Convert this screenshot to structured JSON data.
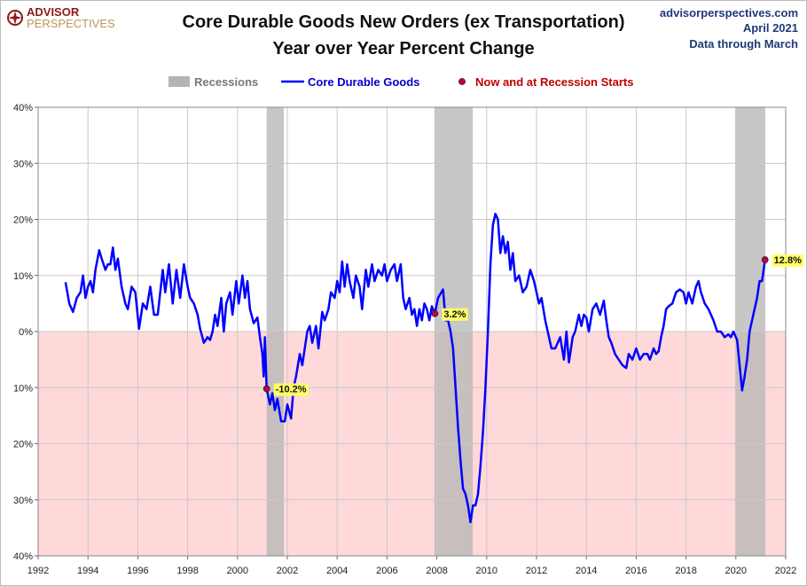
{
  "chart_data": {
    "type": "line",
    "title": "Core Durable Goods New Orders (ex Transportation)",
    "subtitle": "Year over Year Percent Change",
    "logo": [
      "ADVISOR",
      "PERSPECTIVES"
    ],
    "source": [
      "advisorperspectives.com",
      "April 2021",
      "Data through March"
    ],
    "x": [
      1993.1,
      1993.25,
      1993.4,
      1993.55,
      1993.7,
      1993.8,
      1993.9,
      1994.0,
      1994.1,
      1994.2,
      1994.3,
      1994.45,
      1994.55,
      1994.7,
      1994.8,
      1994.9,
      1995.0,
      1995.1,
      1995.2,
      1995.35,
      1995.5,
      1995.6,
      1995.75,
      1995.9,
      1996.05,
      1996.2,
      1996.35,
      1996.5,
      1996.65,
      1996.8,
      1997.0,
      1997.1,
      1997.25,
      1997.4,
      1997.55,
      1997.7,
      1997.85,
      1998.0,
      1998.1,
      1998.25,
      1998.4,
      1998.5,
      1998.65,
      1998.8,
      1998.9,
      1999.0,
      1999.1,
      1999.2,
      1999.35,
      1999.45,
      1999.55,
      1999.7,
      1999.8,
      1999.95,
      2000.05,
      2000.2,
      2000.3,
      2000.4,
      2000.5,
      2000.65,
      2000.8,
      2000.9,
      2001.0,
      2001.05,
      2001.1,
      2001.17,
      2001.3,
      2001.4,
      2001.5,
      2001.6,
      2001.75,
      2001.9,
      2002.0,
      2002.15,
      2002.25,
      2002.35,
      2002.5,
      2002.6,
      2002.7,
      2002.8,
      2002.9,
      2003.0,
      2003.15,
      2003.25,
      2003.4,
      2003.5,
      2003.65,
      2003.75,
      2003.9,
      2004.0,
      2004.1,
      2004.2,
      2004.3,
      2004.4,
      2004.5,
      2004.65,
      2004.75,
      2004.9,
      2005.0,
      2005.15,
      2005.25,
      2005.4,
      2005.5,
      2005.65,
      2005.8,
      2005.9,
      2006.0,
      2006.15,
      2006.3,
      2006.4,
      2006.55,
      2006.65,
      2006.75,
      2006.9,
      2007.0,
      2007.1,
      2007.2,
      2007.3,
      2007.4,
      2007.5,
      2007.6,
      2007.7,
      2007.8,
      2007.92,
      2008.05,
      2008.25,
      2008.35,
      2008.45,
      2008.55,
      2008.65,
      2008.75,
      2008.85,
      2008.95,
      2009.05,
      2009.15,
      2009.25,
      2009.35,
      2009.45,
      2009.55,
      2009.65,
      2009.75,
      2009.85,
      2009.95,
      2010.05,
      2010.15,
      2010.25,
      2010.35,
      2010.45,
      2010.55,
      2010.65,
      2010.75,
      2010.85,
      2010.95,
      2011.05,
      2011.15,
      2011.3,
      2011.45,
      2011.6,
      2011.75,
      2011.9,
      2012.0,
      2012.1,
      2012.2,
      2012.35,
      2012.45,
      2012.6,
      2012.75,
      2012.85,
      2012.95,
      2013.1,
      2013.2,
      2013.3,
      2013.45,
      2013.55,
      2013.7,
      2013.8,
      2013.9,
      2014.0,
      2014.1,
      2014.25,
      2014.4,
      2014.55,
      2014.7,
      2014.8,
      2014.9,
      2015.0,
      2015.15,
      2015.3,
      2015.45,
      2015.6,
      2015.7,
      2015.85,
      2016.0,
      2016.15,
      2016.3,
      2016.45,
      2016.55,
      2016.7,
      2016.8,
      2016.9,
      2017.0,
      2017.1,
      2017.2,
      2017.3,
      2017.45,
      2017.6,
      2017.75,
      2017.9,
      2018.0,
      2018.1,
      2018.25,
      2018.4,
      2018.5,
      2018.6,
      2018.75,
      2018.9,
      2019.0,
      2019.1,
      2019.25,
      2019.4,
      2019.55,
      2019.7,
      2019.8,
      2019.9,
      2020.05,
      2020.25,
      2020.35,
      2020.45,
      2020.55,
      2020.65,
      2020.75,
      2020.85,
      2020.95,
      2021.05,
      2021.17
    ],
    "series": [
      {
        "name": "Core Durable Goods",
        "color": "#0000ff",
        "values": [
          8.8,
          5,
          3.5,
          6,
          7,
          10,
          6,
          8,
          9,
          7,
          11,
          14.5,
          13,
          11,
          12,
          12,
          15,
          11,
          13,
          8,
          5,
          4,
          8,
          7,
          0.5,
          5,
          4,
          8,
          3,
          3,
          11,
          7,
          12,
          5,
          11,
          6,
          12,
          8,
          6,
          5,
          3,
          0.5,
          -2,
          -1,
          -1.5,
          0,
          3,
          1,
          6,
          0,
          5,
          7,
          3,
          9,
          5,
          10,
          6,
          9,
          4,
          1.5,
          2.5,
          -1,
          -4,
          -8,
          -1,
          -10.2,
          -13,
          -11,
          -14,
          -12,
          -16,
          -16,
          -13,
          -15.5,
          -10,
          -8,
          -4,
          -6,
          -3,
          0,
          1,
          -2,
          1,
          -3,
          3.5,
          2,
          4,
          7,
          6,
          9,
          7,
          12.5,
          8,
          12,
          9,
          6,
          10,
          8,
          4,
          11,
          8,
          12,
          9,
          11,
          10,
          12,
          9,
          11,
          12,
          9,
          12,
          6,
          4,
          6,
          3,
          4,
          1,
          4,
          2,
          5,
          4,
          2,
          4.5,
          3.2,
          6,
          7.5,
          2,
          2,
          0,
          -3,
          -10,
          -17,
          -23,
          -28,
          -29,
          -31,
          -34,
          -31,
          -31,
          -29,
          -24,
          -18,
          -10,
          0,
          12,
          19,
          21,
          20,
          14,
          17,
          14,
          16,
          11,
          14,
          9,
          10,
          7,
          8,
          11,
          9,
          7,
          5,
          6,
          2,
          0,
          -3,
          -3,
          -2,
          -1,
          -5,
          0,
          -5.5,
          -1,
          0,
          3,
          1,
          3,
          2.5,
          0,
          4,
          5,
          3,
          5.5,
          2,
          -1,
          -2,
          -4,
          -5,
          -6,
          -6.5,
          -4,
          -5,
          -3,
          -5,
          -4,
          -4,
          -5,
          -3,
          -4,
          -3.5,
          -1,
          1,
          4,
          4.5,
          5,
          7,
          7.5,
          7,
          5,
          7,
          5,
          8,
          9,
          7,
          5,
          4,
          3,
          2,
          0,
          0,
          -1,
          -0.5,
          -1,
          0,
          -1.5,
          -10.5,
          -8,
          -5,
          0,
          2,
          4,
          6,
          9,
          9,
          12.8
        ]
      }
    ],
    "recessions": {
      "name": "Recessions",
      "color": "#b4b4b4",
      "spans": [
        [
          2001.17,
          2001.86
        ],
        [
          2007.9,
          2009.44
        ],
        [
          2019.97,
          2021.18
        ]
      ]
    },
    "markers": {
      "name": "Now and at Recession Starts",
      "color": "#c0004a",
      "x": [
        2001.17,
        2007.92,
        2021.17
      ],
      "values": [
        -10.2,
        3.2,
        12.8
      ],
      "value_labels": [
        "-10.2%",
        "3.2%",
        "12.8%"
      ]
    },
    "negative_fill": "#ffd9d9",
    "xlim": [
      1992,
      2022
    ],
    "ylim": [
      -40,
      40
    ],
    "xticks": [
      1992,
      1994,
      1996,
      1998,
      2000,
      2002,
      2004,
      2006,
      2008,
      2010,
      2012,
      2014,
      2016,
      2018,
      2020,
      2022
    ],
    "yticks": [
      {
        "value": -40,
        "label": "40%"
      },
      {
        "value": -30,
        "label": "30%"
      },
      {
        "value": -20,
        "label": "20%"
      },
      {
        "value": -10,
        "label": "10%"
      },
      {
        "value": 0,
        "label": "0%"
      },
      {
        "value": 10,
        "label": "10%"
      },
      {
        "value": 20,
        "label": "20%"
      },
      {
        "value": 30,
        "label": "30%"
      },
      {
        "value": 40,
        "label": "40%"
      }
    ],
    "grid": true
  }
}
